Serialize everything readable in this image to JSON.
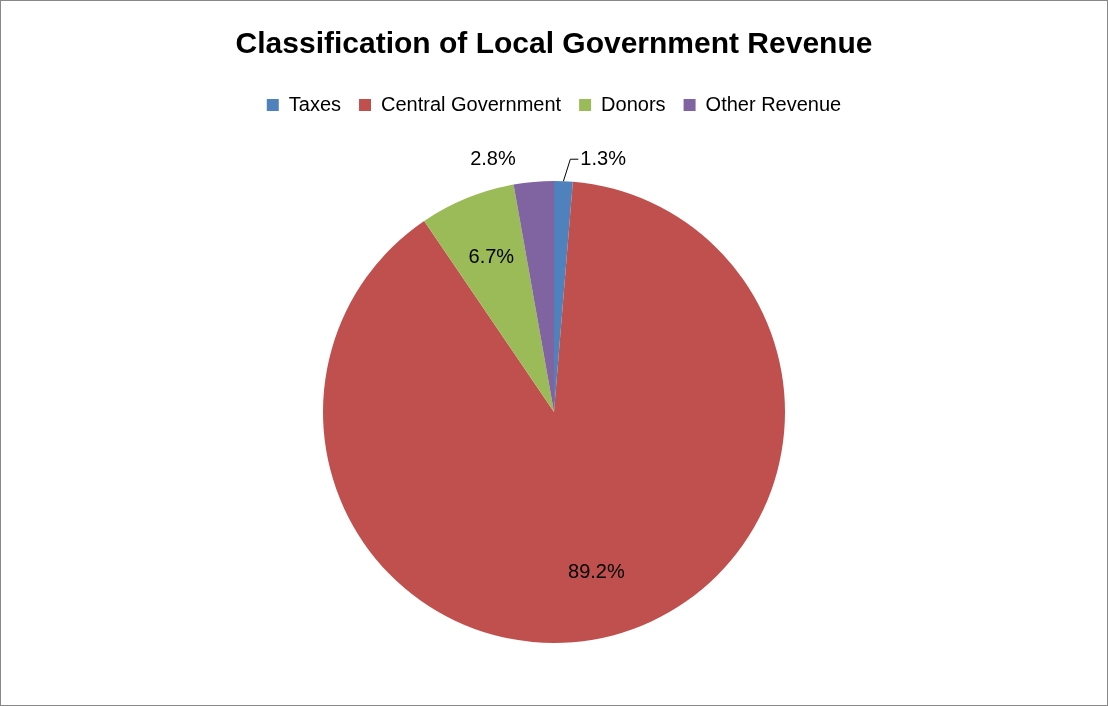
{
  "chart_data": {
    "type": "pie",
    "title": "Classification of Local Government Revenue",
    "categories": [
      "Taxes",
      "Central Government",
      "Donors",
      "Other Revenue"
    ],
    "values": [
      1.3,
      89.2,
      6.7,
      2.8
    ],
    "colors": [
      "#4f81bd",
      "#c0504d",
      "#9bbb59",
      "#8064a2"
    ],
    "value_labels": [
      "1.3%",
      "89.2%",
      "6.7%",
      "2.8%"
    ],
    "legend": "top"
  }
}
